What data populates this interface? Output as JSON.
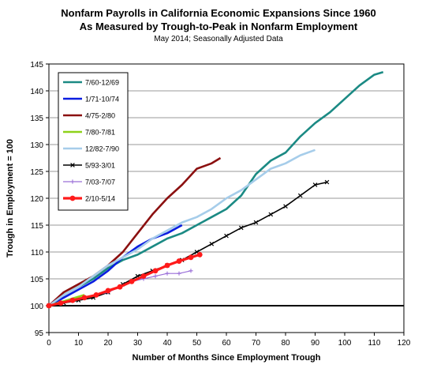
{
  "chart_data": {
    "type": "line",
    "title": "Nonfarm Payrolls in California Economic Expansions Since 1960",
    "title_line2": "As Measured by Trough-to-Peak in Nonfarm Employment",
    "subtitle": "May 2014; Seasonally Adjusted Data",
    "xlabel": "Number of Months Since Employment Trough",
    "ylabel": "Trough in Employment = 100",
    "xlim": [
      0,
      120
    ],
    "ylim": [
      95,
      145
    ],
    "xticks": [
      0,
      10,
      20,
      30,
      40,
      50,
      60,
      70,
      80,
      90,
      100,
      110,
      120
    ],
    "yticks": [
      95,
      100,
      105,
      110,
      115,
      120,
      125,
      130,
      135,
      140,
      145
    ],
    "grid": true,
    "legend_position": "top-left",
    "reference_line": {
      "y": 100,
      "color": "#000000"
    },
    "series": [
      {
        "name": "7/60-12/69",
        "color": "#1b8a84",
        "marker": "none",
        "x": [
          0,
          5,
          10,
          15,
          20,
          25,
          30,
          35,
          40,
          45,
          50,
          55,
          60,
          65,
          70,
          75,
          80,
          85,
          90,
          95,
          100,
          105,
          110,
          113
        ],
        "y": [
          100,
          102,
          103.5,
          105,
          107,
          108.5,
          109.5,
          111,
          112.5,
          113.5,
          115,
          116.5,
          118,
          120.5,
          124.5,
          127,
          128.5,
          131.5,
          134,
          136,
          138.5,
          141,
          143,
          143.5
        ]
      },
      {
        "name": "1/71-10/74",
        "color": "#0a1de0",
        "marker": "none",
        "x": [
          0,
          5,
          10,
          15,
          20,
          25,
          30,
          35,
          40,
          45
        ],
        "y": [
          100,
          101.5,
          103,
          104.5,
          106.5,
          109,
          111,
          112.5,
          113.5,
          115
        ]
      },
      {
        "name": "4/75-2/80",
        "color": "#8b1010",
        "marker": "none",
        "x": [
          0,
          5,
          10,
          15,
          20,
          25,
          30,
          35,
          40,
          45,
          50,
          55,
          58
        ],
        "y": [
          100,
          102.5,
          104,
          105.5,
          107.5,
          110,
          113.5,
          117,
          120,
          122.5,
          125.5,
          126.5,
          127.5
        ]
      },
      {
        "name": "7/80-7/81",
        "color": "#8ed21a",
        "marker": "none",
        "x": [
          0,
          3,
          6,
          9,
          12
        ],
        "y": [
          100,
          100.5,
          101,
          101.5,
          102
        ]
      },
      {
        "name": "12/82-7/90",
        "color": "#a6cdea",
        "marker": "none",
        "x": [
          0,
          5,
          10,
          15,
          20,
          25,
          30,
          35,
          40,
          45,
          50,
          55,
          60,
          65,
          70,
          75,
          80,
          85,
          90
        ],
        "y": [
          100,
          102,
          103.5,
          105.5,
          107.5,
          109,
          110.5,
          112.5,
          114,
          115.5,
          116.5,
          118,
          120,
          121.5,
          123.5,
          125.5,
          126.5,
          128,
          129
        ]
      },
      {
        "name": "5/93-3/01",
        "color": "#000000",
        "marker": "cross",
        "x": [
          0,
          5,
          10,
          15,
          20,
          25,
          30,
          35,
          40,
          45,
          50,
          55,
          60,
          65,
          70,
          75,
          80,
          85,
          90,
          94
        ],
        "y": [
          100,
          100.5,
          101,
          101.5,
          102.5,
          104,
          105.5,
          106.5,
          107.5,
          108.5,
          110,
          111.5,
          113,
          114.5,
          115.5,
          117,
          118.5,
          120.5,
          122.5,
          123
        ]
      },
      {
        "name": "7/03-7/07",
        "color": "#9a6fd8",
        "marker": "plus",
        "x": [
          0,
          4,
          8,
          12,
          16,
          20,
          24,
          28,
          32,
          36,
          40,
          44,
          48
        ],
        "y": [
          100,
          100.5,
          101,
          101.5,
          102,
          102.5,
          103.5,
          104.5,
          105,
          105.5,
          106,
          106,
          106.5
        ]
      },
      {
        "name": "2/10-5/14",
        "color": "#ff1a1a",
        "marker": "dot",
        "x": [
          0,
          4,
          8,
          12,
          16,
          20,
          24,
          28,
          32,
          36,
          40,
          44,
          48,
          51
        ],
        "y": [
          100,
          100.5,
          101,
          101.5,
          102,
          102.8,
          103.5,
          104.5,
          105.5,
          106.5,
          107.5,
          108.3,
          109,
          109.5
        ]
      }
    ]
  }
}
